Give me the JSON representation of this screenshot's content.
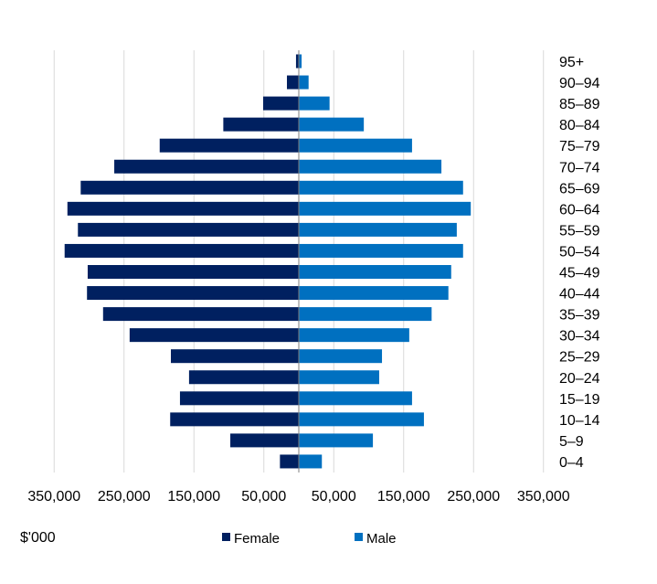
{
  "chart_data": {
    "type": "bar",
    "orientation": "horizontal",
    "subtype": "population-pyramid",
    "categories": [
      "95+",
      "90–94",
      "85–89",
      "80–84",
      "75–79",
      "70–74",
      "65–69",
      "60–64",
      "55–59",
      "50–54",
      "45–49",
      "40–44",
      "35–39",
      "30–34",
      "25–29",
      "20–24",
      "15–19",
      "10–14",
      "5–9",
      "0–4"
    ],
    "series": [
      {
        "name": "Female",
        "color": "#002060",
        "side": "left",
        "values": [
          4,
          17,
          51,
          108,
          199,
          264,
          312,
          331,
          316,
          335,
          302,
          303,
          280,
          242,
          183,
          157,
          170,
          184,
          98,
          27
        ]
      },
      {
        "name": "Male",
        "color": "#0070C0",
        "side": "right",
        "values": [
          4,
          14,
          44,
          93,
          162,
          204,
          235,
          246,
          226,
          235,
          218,
          214,
          190,
          158,
          119,
          115,
          162,
          179,
          106,
          33
        ]
      }
    ],
    "xaxis": {
      "ticks": [
        -350000,
        -250000,
        -150000,
        -50000,
        50000,
        150000,
        250000,
        350000
      ],
      "tick_labels": [
        "350,000",
        "250,000",
        "150,000",
        "50,000",
        "50,000",
        "150,000",
        "250,000",
        "350,000"
      ],
      "range": [
        -350000,
        350000
      ]
    },
    "unit_label": "$'000",
    "grid": true,
    "legend": {
      "placement": "bottom",
      "entries": [
        "Female",
        "Male"
      ]
    }
  }
}
